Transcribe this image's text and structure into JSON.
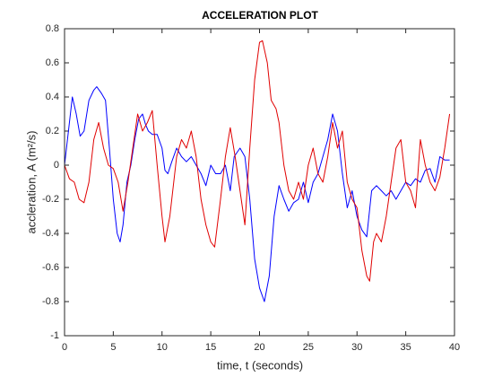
{
  "chart_data": {
    "type": "line",
    "title": "ACCELERATION PLOT",
    "x_label": "time, t (seconds)",
    "y_label": "accleration, A (m²/s)",
    "xlim": [
      0,
      40
    ],
    "xticks": [
      0,
      5,
      10,
      15,
      20,
      25,
      30,
      35,
      40
    ],
    "ylim": [
      -1,
      0.8
    ],
    "yticks": [
      -1,
      -0.8,
      -0.6,
      -0.4,
      -0.2,
      0,
      0.2,
      0.4,
      0.6,
      0.8
    ],
    "grid": false,
    "series": [
      {
        "color": "#0000ff",
        "x": [
          0,
          0.5,
          0.8,
          1.2,
          1.6,
          2.0,
          2.5,
          3.0,
          3.3,
          3.8,
          4.2,
          4.6,
          5.0,
          5.4,
          5.7,
          6.0,
          6.4,
          6.8,
          7.2,
          7.6,
          8.0,
          8.3,
          8.6,
          9.0,
          9.5,
          10.0,
          10.3,
          10.6,
          11.0,
          11.5,
          12.0,
          12.5,
          13.0,
          13.5,
          14.0,
          14.5,
          15.0,
          15.5,
          16.0,
          16.5,
          17.0,
          17.4,
          18.0,
          18.5,
          19.0,
          19.5,
          20.0,
          20.5,
          21.0,
          21.5,
          22.0,
          22.5,
          23.0,
          23.5,
          24.0,
          24.5,
          25.0,
          25.5,
          26.0,
          26.5,
          27.0,
          27.5,
          28.0,
          28.5,
          29.0,
          29.5,
          30.0,
          30.5,
          31.0,
          31.5,
          32.0,
          32.5,
          33.0,
          33.5,
          34.0,
          34.5,
          35.0,
          35.5,
          36.0,
          36.5,
          37.0,
          37.5,
          38.0,
          38.5,
          39.0,
          39.5
        ],
        "values": [
          0,
          0.25,
          0.4,
          0.3,
          0.17,
          0.2,
          0.38,
          0.44,
          0.46,
          0.42,
          0.38,
          0.1,
          -0.2,
          -0.4,
          -0.45,
          -0.35,
          -0.1,
          0,
          0.15,
          0.27,
          0.3,
          0.24,
          0.2,
          0.18,
          0.18,
          0.1,
          -0.03,
          -0.05,
          0.02,
          0.1,
          0.05,
          0.02,
          0.05,
          0,
          -0.05,
          -0.12,
          0,
          -0.05,
          -0.05,
          0,
          -0.15,
          0.05,
          0.1,
          0.05,
          -0.2,
          -0.55,
          -0.72,
          -0.8,
          -0.65,
          -0.3,
          -0.12,
          -0.2,
          -0.27,
          -0.22,
          -0.2,
          -0.1,
          -0.22,
          -0.1,
          -0.05,
          0.05,
          0.15,
          0.3,
          0.2,
          -0.05,
          -0.25,
          -0.15,
          -0.3,
          -0.38,
          -0.42,
          -0.15,
          -0.12,
          -0.15,
          -0.18,
          -0.15,
          -0.2,
          -0.15,
          -0.1,
          -0.12,
          -0.08,
          -0.1,
          -0.03,
          -0.02,
          -0.1,
          0.05,
          0.03,
          0.03
        ]
      },
      {
        "color": "#e00000",
        "x": [
          0,
          0.5,
          1.0,
          1.5,
          2.0,
          2.5,
          3.0,
          3.5,
          4.0,
          4.5,
          5.0,
          5.5,
          6.0,
          6.5,
          7.0,
          7.5,
          8.0,
          8.5,
          9.0,
          9.5,
          10.0,
          10.3,
          10.8,
          11.2,
          11.5,
          12.0,
          12.5,
          13.0,
          13.5,
          14.0,
          14.5,
          15.0,
          15.4,
          16.0,
          16.5,
          17.0,
          17.5,
          18.0,
          18.5,
          19.0,
          19.5,
          20.0,
          20.3,
          20.8,
          21.2,
          21.7,
          22.0,
          22.5,
          23.0,
          23.5,
          24.0,
          24.5,
          25.0,
          25.5,
          26.0,
          26.5,
          27.0,
          27.5,
          28.0,
          28.5,
          29.0,
          29.5,
          30.0,
          30.5,
          31.0,
          31.3,
          31.7,
          32.0,
          32.5,
          33.0,
          33.5,
          34.0,
          34.5,
          35.0,
          35.5,
          36.0,
          36.5,
          37.0,
          37.5,
          38.0,
          38.5,
          39.0,
          39.5
        ],
        "values": [
          0,
          -0.08,
          -0.1,
          -0.2,
          -0.22,
          -0.1,
          0.15,
          0.25,
          0.1,
          0,
          -0.02,
          -0.1,
          -0.27,
          -0.1,
          0.1,
          0.3,
          0.2,
          0.25,
          0.32,
          0,
          -0.3,
          -0.45,
          -0.3,
          -0.1,
          0.05,
          0.15,
          0.1,
          0.2,
          0.05,
          -0.2,
          -0.35,
          -0.45,
          -0.48,
          -0.2,
          0.05,
          0.22,
          0.05,
          -0.15,
          -0.35,
          0.1,
          0.5,
          0.72,
          0.73,
          0.6,
          0.38,
          0.33,
          0.25,
          0,
          -0.15,
          -0.2,
          -0.1,
          -0.2,
          0,
          0.1,
          -0.05,
          -0.1,
          0.05,
          0.25,
          0.1,
          0.2,
          -0.1,
          -0.2,
          -0.25,
          -0.5,
          -0.65,
          -0.68,
          -0.45,
          -0.4,
          -0.45,
          -0.3,
          -0.1,
          0.1,
          0.15,
          -0.1,
          -0.15,
          -0.25,
          0.15,
          0,
          -0.1,
          -0.15,
          -0.07,
          0.1,
          0.3
        ]
      }
    ]
  }
}
